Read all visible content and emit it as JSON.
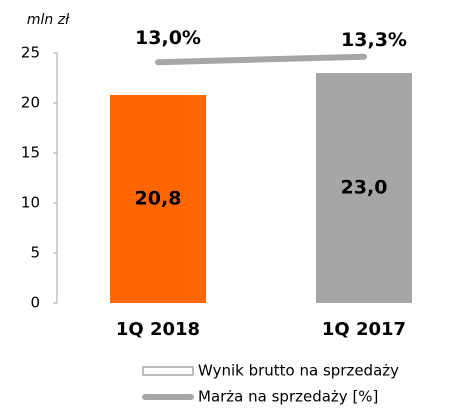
{
  "chart_data": {
    "type": "bar",
    "y_label": "mln zł",
    "categories": [
      "1Q 2018",
      "1Q 2017"
    ],
    "series": [
      {
        "name": "Wynik brutto na sprzedaży",
        "type": "bar",
        "colors": [
          "#ff6600",
          "#a6a6a6"
        ],
        "legend_color": "#a6a6a6",
        "values": [
          20.8,
          23.0
        ],
        "value_labels": [
          "20,8",
          "23,0"
        ]
      },
      {
        "name": "Marża na sprzedaży [%]",
        "type": "line",
        "axis": "y2",
        "color": "#a6a6a6",
        "values": [
          13.0,
          13.3
        ],
        "value_labels": [
          "13,0%",
          "13,3%"
        ]
      }
    ],
    "ylim": [
      0,
      25
    ],
    "yticks": [
      0,
      5,
      10,
      15,
      20,
      25
    ],
    "y2lim": [
      0,
      13.5
    ],
    "legend": "bottom"
  }
}
